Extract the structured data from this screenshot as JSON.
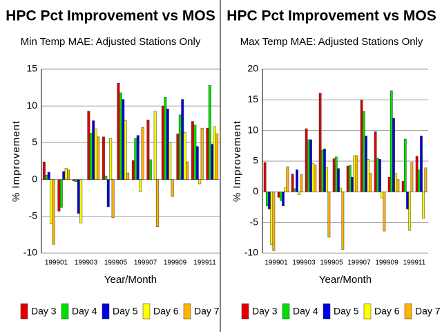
{
  "chart_data": [
    {
      "type": "bar",
      "title": "HPC Pct Improvement vs MOS",
      "subtitle": "Min Temp MAE:  Adjusted Stations Only",
      "x_label": "Year/Month",
      "y_label": "% Improvement",
      "categories": [
        "199901",
        null,
        "199903",
        null,
        "199905",
        null,
        "199907",
        null,
        "199909",
        null,
        "199911",
        null
      ],
      "ylim": [
        -10,
        15
      ],
      "yticks": [
        -10,
        -5,
        0,
        5,
        10,
        15
      ],
      "grid": true,
      "series": [
        {
          "name": "Day 3",
          "color": "#e00000",
          "values": [
            2.4,
            -4.3,
            -0.2,
            9.3,
            5.8,
            13.1,
            2.6,
            8.1,
            10.0,
            6.2,
            7.9,
            7.0
          ]
        },
        {
          "name": "Day 4",
          "color": "#00e000",
          "values": [
            0.6,
            -3.8,
            -0.3,
            6.3,
            0.5,
            11.8,
            5.6,
            2.7,
            11.2,
            8.8,
            7.4,
            12.8
          ]
        },
        {
          "name": "Day 5",
          "color": "#0000e0",
          "values": [
            1.0,
            1.1,
            -4.6,
            8.0,
            -3.7,
            10.9,
            6.0,
            0,
            9.6,
            10.9,
            4.5,
            4.8
          ]
        },
        {
          "name": "Day 6",
          "color": "#ffff00",
          "values": [
            -6.0,
            1.5,
            -5.9,
            6.9,
            5.6,
            8.0,
            -1.6,
            9.3,
            5.1,
            6.4,
            -0.6,
            7.2
          ]
        },
        {
          "name": "Day 7",
          "color": "#ffb400",
          "values": [
            -8.8,
            1.3,
            0,
            5.8,
            -5.2,
            0.9,
            7.1,
            -6.4,
            -2.3,
            2.4,
            7.0,
            6.2
          ]
        }
      ]
    },
    {
      "type": "bar",
      "title": "HPC Pct Improvement vs MOS",
      "subtitle": "Max Temp MAE:  Adjusted Stations Only",
      "x_label": "Year/Month",
      "y_label": "% Improvement",
      "categories": [
        "199901",
        null,
        "199903",
        null,
        "199905",
        null,
        "199907",
        null,
        "199909",
        null,
        "199911",
        null
      ],
      "ylim": [
        -10,
        20
      ],
      "yticks": [
        -10,
        -5,
        0,
        5,
        10,
        15,
        20
      ],
      "grid": true,
      "series": [
        {
          "name": "Day 3",
          "color": "#e00000",
          "values": [
            4.8,
            -0.9,
            2.9,
            10.3,
            16.1,
            5.4,
            4.2,
            15.0,
            9.8,
            2.4,
            1.7,
            5.8
          ]
        },
        {
          "name": "Day 4",
          "color": "#00e000",
          "values": [
            -2.3,
            -1.4,
            0.5,
            8.5,
            6.8,
            5.7,
            4.3,
            13.1,
            5.5,
            16.5,
            8.6,
            3.6
          ]
        },
        {
          "name": "Day 5",
          "color": "#0000e0",
          "values": [
            -2.8,
            -2.3,
            3.6,
            8.5,
            7.0,
            3.8,
            2.4,
            9.1,
            5.3,
            12.0,
            -2.8,
            9.1
          ]
        },
        {
          "name": "Day 6",
          "color": "#ffff00",
          "values": [
            -8.6,
            0.7,
            -0.5,
            4.6,
            4.0,
            0.6,
            5.9,
            5.3,
            -1.0,
            3.0,
            -6.3,
            -4.3
          ]
        },
        {
          "name": "Day 7",
          "color": "#ffb400",
          "values": [
            -9.6,
            4.1,
            2.8,
            4.4,
            -7.4,
            -9.4,
            5.9,
            3.0,
            -6.4,
            2.0,
            4.8,
            3.9
          ]
        }
      ]
    }
  ]
}
